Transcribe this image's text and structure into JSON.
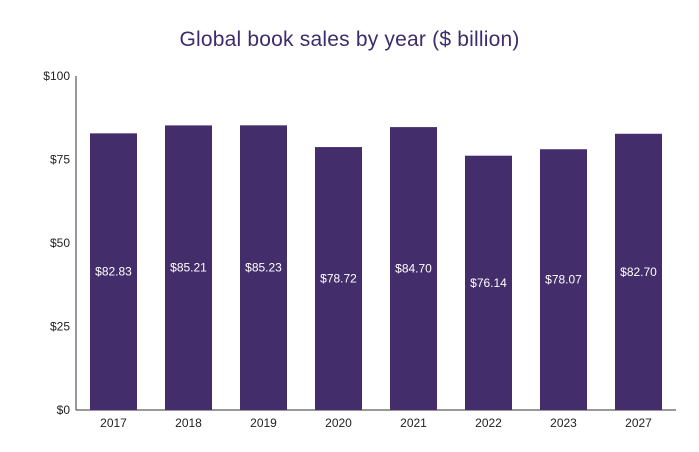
{
  "chart_data": {
    "type": "bar",
    "title": "Global book sales by year ($ billion)",
    "xlabel": "",
    "ylabel": "",
    "categories": [
      "2017",
      "2018",
      "2019",
      "2020",
      "2021",
      "2022",
      "2023",
      "2027"
    ],
    "values": [
      82.83,
      85.21,
      85.23,
      78.72,
      84.7,
      76.14,
      78.07,
      82.7
    ],
    "data_labels": [
      "$82.83",
      "$85.21",
      "$85.23",
      "$78.72",
      "$84.70",
      "$76.14",
      "$78.07",
      "$82.70"
    ],
    "ylim": [
      0,
      100
    ],
    "y_ticks": [
      0,
      25,
      50,
      75,
      100
    ],
    "y_tick_labels": [
      "$0",
      "$25",
      "$50",
      "$75",
      "$100"
    ],
    "grid": false,
    "legend": "none",
    "bar_color": "#432d6b",
    "title_color": "#3f2c6b"
  }
}
